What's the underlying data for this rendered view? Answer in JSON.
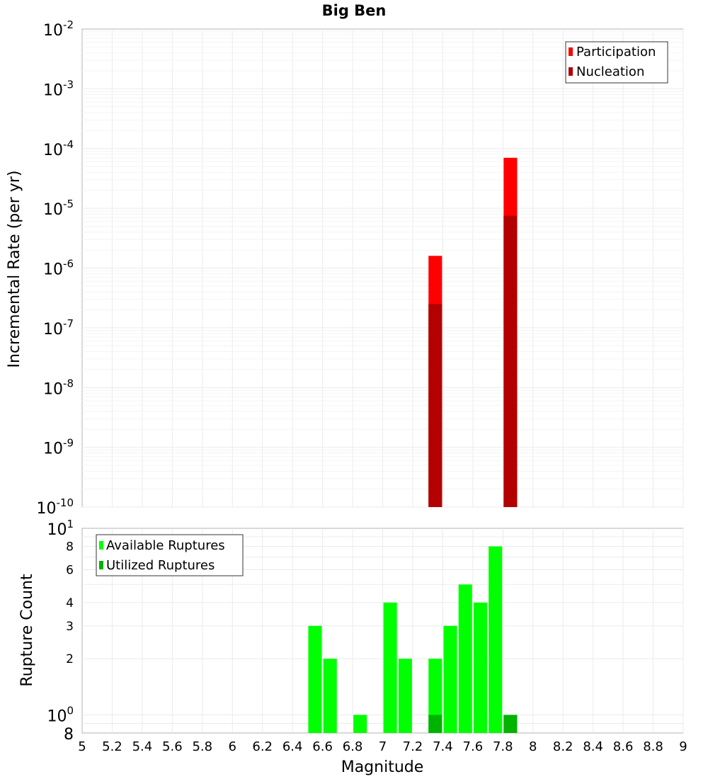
{
  "chart_data": [
    {
      "type": "bar",
      "title": "Big Ben",
      "xlabel": "",
      "ylabel": "Incremental Rate (per yr)",
      "y_scale": "log",
      "ylim": [
        1e-10,
        0.01
      ],
      "xlim": [
        5,
        9
      ],
      "grid": true,
      "legend_position": "top-right",
      "y_tick_labels": [
        {
          "value": 0.01,
          "base": "10",
          "exp": "-2"
        },
        {
          "value": 0.001,
          "base": "10",
          "exp": "-3"
        },
        {
          "value": 0.0001,
          "base": "10",
          "exp": "-4"
        },
        {
          "value": 1e-05,
          "base": "10",
          "exp": "-5"
        },
        {
          "value": 1e-06,
          "base": "10",
          "exp": "-6"
        },
        {
          "value": 1e-07,
          "base": "10",
          "exp": "-7"
        },
        {
          "value": 1e-08,
          "base": "10",
          "exp": "-8"
        },
        {
          "value": 1e-09,
          "base": "10",
          "exp": "-9"
        },
        {
          "value": 1e-10,
          "base": "10",
          "exp": "-10"
        }
      ],
      "x": [
        7.35,
        7.85
      ],
      "series": [
        {
          "name": "Participation",
          "color": "#ff0000",
          "values": [
            1.6e-06,
            7e-05
          ]
        },
        {
          "name": "Nucleation",
          "color": "#b30000",
          "values": [
            2.5e-07,
            7.5e-06
          ]
        }
      ]
    },
    {
      "type": "bar",
      "title": "",
      "xlabel": "Magnitude",
      "ylabel": "Rupture Count",
      "y_scale": "log",
      "ylim": [
        0.8,
        10
      ],
      "xlim": [
        5,
        9
      ],
      "grid": true,
      "legend_position": "top-left",
      "y_tick_labels": [
        {
          "value": 10,
          "base": "10",
          "exp": "1"
        },
        {
          "value": 8,
          "base": "8",
          "exp": ""
        },
        {
          "value": 6,
          "base": "6",
          "exp": ""
        },
        {
          "value": 4,
          "base": "4",
          "exp": ""
        },
        {
          "value": 3,
          "base": "3",
          "exp": ""
        },
        {
          "value": 2,
          "base": "2",
          "exp": ""
        },
        {
          "value": 1,
          "base": "10",
          "exp": "0"
        },
        {
          "value": 0.8,
          "base": "8",
          "exp": ""
        }
      ],
      "x_tick_labels": [
        "5",
        "5.2",
        "5.4",
        "5.6",
        "5.8",
        "6",
        "6.2",
        "6.4",
        "6.6",
        "6.8",
        "7",
        "7.2",
        "7.4",
        "7.6",
        "7.8",
        "8",
        "8.2",
        "8.4",
        "8.6",
        "8.8",
        "9"
      ],
      "x": [
        6.55,
        6.65,
        6.85,
        7.05,
        7.15,
        7.35,
        7.45,
        7.55,
        7.65,
        7.75,
        7.85
      ],
      "series": [
        {
          "name": "Available Ruptures",
          "color": "#00ff00",
          "values": [
            3,
            2,
            1,
            4,
            2,
            2,
            3,
            5,
            4,
            8,
            1
          ]
        },
        {
          "name": "Utilized Ruptures",
          "color": "#00b300",
          "values": [
            0,
            0,
            0,
            0,
            0,
            1,
            0,
            0,
            0,
            0,
            1
          ]
        }
      ]
    }
  ]
}
